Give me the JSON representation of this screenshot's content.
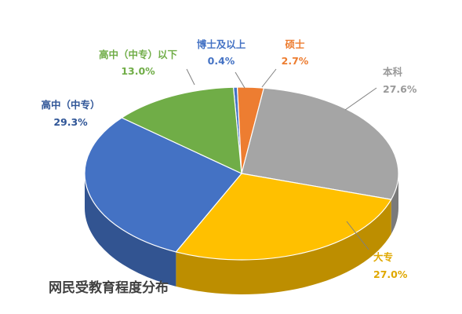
{
  "chart_data": {
    "type": "pie",
    "title": "网民受教育程度分布",
    "style": "3d-pie",
    "slices": [
      {
        "name": "博士及以上",
        "value": 0.4,
        "label": "0.4%",
        "color": "#4472c4",
        "label_color": "#4472c4"
      },
      {
        "name": "硕士",
        "value": 2.7,
        "label": "2.7%",
        "color": "#ed7d31",
        "label_color": "#ed7d31"
      },
      {
        "name": "本科",
        "value": 27.6,
        "label": "27.6%",
        "color": "#a5a5a5",
        "label_color": "#9a9a9a"
      },
      {
        "name": "大专",
        "value": 27.0,
        "label": "27.0%",
        "color": "#ffc000",
        "label_color": "#e0a800"
      },
      {
        "name": "高中（中专）",
        "value": 29.3,
        "label": "29.3%",
        "color": "#4472c4",
        "label_color": "#2f5597"
      },
      {
        "name": "高中（中专）以下",
        "value": 13.0,
        "label": "13.0%",
        "color": "#70ad47",
        "label_color": "#70ad47"
      }
    ]
  }
}
